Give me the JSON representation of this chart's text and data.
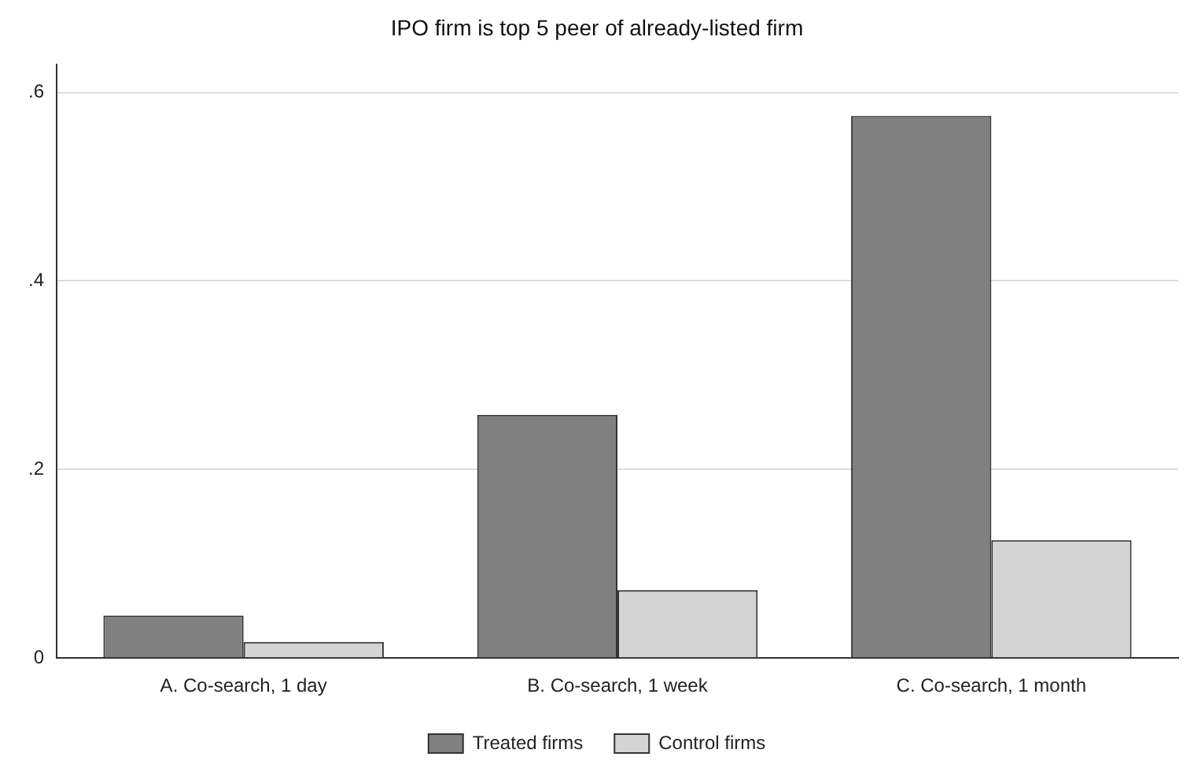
{
  "chart_data": {
    "type": "bar",
    "title": "IPO firm is top 5 peer of already-listed firm",
    "categories": [
      "A. Co-search, 1 day",
      "B. Co-search, 1 week",
      "C. Co-search, 1 month"
    ],
    "series": [
      {
        "name": "Treated firms",
        "color": "#808080",
        "values": [
          0.045,
          0.258,
          0.575
        ]
      },
      {
        "name": "Control firms",
        "color": "#d4d4d4",
        "values": [
          0.017,
          0.072,
          0.125
        ]
      }
    ],
    "ylim": [
      0,
      0.63
    ],
    "yticks": [
      {
        "value": 0,
        "label": "0"
      },
      {
        "value": 0.2,
        "label": ".2"
      },
      {
        "value": 0.4,
        "label": ".4"
      },
      {
        "value": 0.6,
        "label": ".6"
      }
    ],
    "grid": "y",
    "legend": "bottom"
  }
}
